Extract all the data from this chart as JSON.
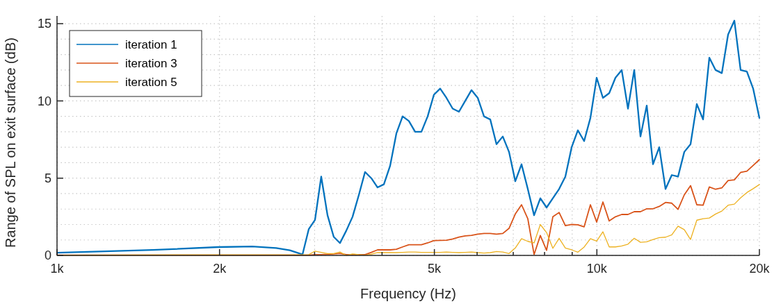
{
  "chart_data": {
    "type": "line",
    "xlabel": "Frequency (Hz)",
    "ylabel": "Range of SPL on exit surface (dB)",
    "log": "x",
    "xlim": [
      1000,
      20000
    ],
    "ylim": [
      0,
      15.5
    ],
    "xticks": [
      {
        "value": 1000,
        "label": "1k"
      },
      {
        "value": 2000,
        "label": "2k"
      },
      {
        "value": 3000,
        "label": null
      },
      {
        "value": 4000,
        "label": null
      },
      {
        "value": 5000,
        "label": "5k"
      },
      {
        "value": 6000,
        "label": null
      },
      {
        "value": 7000,
        "label": null
      },
      {
        "value": 8000,
        "label": null
      },
      {
        "value": 9000,
        "label": null
      },
      {
        "value": 10000,
        "label": "10k"
      },
      {
        "value": 20000,
        "label": "20k"
      }
    ],
    "yticks": [
      0,
      {
        "value": 1,
        "label": null
      },
      {
        "value": 2,
        "label": null
      },
      {
        "value": 3,
        "label": null
      },
      {
        "value": 4,
        "label": null
      },
      5,
      {
        "value": 6,
        "label": null
      },
      {
        "value": 7,
        "label": null
      },
      {
        "value": 8,
        "label": null
      },
      {
        "value": 9,
        "label": null
      },
      10,
      {
        "value": 11,
        "label": null
      },
      {
        "value": 12,
        "label": null
      },
      {
        "value": 13,
        "label": null
      },
      {
        "value": 14,
        "label": null
      },
      15
    ],
    "grid": true,
    "legend": "top left",
    "marker": "none",
    "line_style": "solid",
    "series": [
      {
        "name": "iteration 1",
        "color": "#0072bd",
        "x": [
          1000,
          1500,
          1985,
          2300,
          2547,
          2700,
          2849,
          2926,
          3005,
          3086,
          3170,
          3255,
          3343,
          3434,
          3527,
          3622,
          3720,
          3821,
          3924,
          4031,
          4140,
          4252,
          4367,
          4485,
          4606,
          4731,
          4859,
          4990,
          5125,
          5264,
          5406,
          5553,
          5703,
          5857,
          6016,
          6179,
          6346,
          6517,
          6694,
          6875,
          7061,
          7252,
          7448,
          7650,
          7857,
          8069,
          8288,
          8512,
          8742,
          8979,
          9222,
          9471,
          9728,
          9991,
          10261,
          10539,
          10824,
          11117,
          11418,
          11727,
          12044,
          12370,
          12704,
          13048,
          13401,
          13764,
          14136,
          14518,
          14911,
          15314,
          15729,
          16154,
          16591,
          17040,
          17501,
          17974,
          18460,
          18960,
          19473,
          20000
        ],
        "values": [
          0.17,
          0.35,
          0.54,
          0.58,
          0.48,
          0.33,
          0.06,
          1.7,
          2.3,
          5.1,
          2.6,
          1.2,
          0.8,
          1.6,
          2.5,
          3.9,
          5.4,
          5.0,
          4.4,
          4.6,
          5.8,
          7.9,
          9.0,
          8.7,
          8.0,
          8.0,
          9.0,
          10.4,
          10.8,
          10.2,
          9.5,
          9.3,
          10.0,
          10.7,
          10.2,
          9.0,
          8.8,
          7.2,
          7.7,
          6.7,
          4.8,
          5.9,
          4.3,
          2.6,
          3.7,
          3.1,
          3.7,
          4.3,
          5.1,
          7.0,
          8.1,
          7.4,
          8.9,
          11.5,
          10.2,
          10.5,
          11.5,
          12.0,
          9.5,
          12.0,
          7.7,
          9.7,
          5.9,
          7.0,
          4.3,
          5.2,
          5.1,
          6.7,
          7.2,
          9.8,
          8.8,
          12.8,
          12.0,
          11.8,
          14.3,
          15.2,
          12.0,
          11.9,
          10.8,
          8.9
        ]
      },
      {
        "name": "iteration 3",
        "color": "#d95319",
        "x": [
          1000,
          2926,
          3005,
          3086,
          3170,
          3255,
          3343,
          3434,
          3527,
          3622,
          3720,
          3821,
          3924,
          4031,
          4140,
          4252,
          4367,
          4485,
          4606,
          4731,
          4859,
          4990,
          5125,
          5264,
          5406,
          5553,
          5703,
          5857,
          6016,
          6179,
          6346,
          6517,
          6694,
          6875,
          7061,
          7252,
          7448,
          7650,
          7857,
          8069,
          8288,
          8512,
          8742,
          8979,
          9222,
          9471,
          9728,
          9991,
          10261,
          10539,
          10824,
          11117,
          11418,
          11727,
          12044,
          12370,
          12704,
          13048,
          13401,
          13764,
          14136,
          14518,
          14911,
          15314,
          15729,
          16154,
          16591,
          17040,
          17501,
          17974,
          18460,
          18960,
          19473,
          20000
        ],
        "values": [
          0.02,
          0.02,
          0.05,
          0.05,
          0.07,
          0.1,
          0.13,
          0.05,
          0.05,
          0.05,
          0.05,
          0.2,
          0.36,
          0.36,
          0.36,
          0.4,
          0.55,
          0.69,
          0.69,
          0.69,
          0.81,
          0.96,
          0.97,
          0.98,
          1.06,
          1.18,
          1.26,
          1.3,
          1.38,
          1.42,
          1.42,
          1.38,
          1.42,
          1.75,
          2.68,
          3.28,
          2.38,
          0.06,
          1.29,
          0.33,
          2.5,
          2.78,
          1.93,
          2.0,
          1.98,
          1.85,
          3.28,
          2.16,
          3.46,
          2.23,
          2.5,
          2.65,
          2.65,
          2.83,
          2.83,
          3.02,
          3.02,
          3.17,
          3.43,
          3.38,
          2.98,
          3.92,
          4.52,
          3.28,
          3.25,
          4.43,
          4.28,
          4.37,
          4.85,
          4.89,
          5.37,
          5.45,
          5.82,
          6.2
        ]
      },
      {
        "name": "iteration 5",
        "color": "#edb120",
        "x": [
          1000,
          2926,
          3005,
          3086,
          3170,
          3255,
          3343,
          3434,
          3527,
          3622,
          3720,
          3821,
          3924,
          4031,
          4140,
          4252,
          4367,
          4485,
          4606,
          4731,
          4859,
          4990,
          5125,
          5264,
          5406,
          5553,
          5703,
          5857,
          6016,
          6179,
          6346,
          6517,
          6694,
          6875,
          7061,
          7252,
          7448,
          7650,
          7857,
          8069,
          8288,
          8512,
          8742,
          8979,
          9222,
          9471,
          9728,
          9991,
          10261,
          10539,
          10824,
          11117,
          11418,
          11727,
          12044,
          12370,
          12704,
          13048,
          13401,
          13764,
          14136,
          14518,
          14911,
          15314,
          15729,
          16154,
          16591,
          17040,
          17501,
          17974,
          18460,
          18960,
          19473,
          20000
        ],
        "values": [
          0.02,
          0.05,
          0.28,
          0.2,
          0.12,
          0.12,
          0.22,
          0.0,
          0.1,
          0.05,
          0.02,
          0.08,
          0.18,
          0.18,
          0.18,
          0.18,
          0.2,
          0.22,
          0.22,
          0.2,
          0.2,
          0.2,
          0.2,
          0.22,
          0.2,
          0.18,
          0.2,
          0.22,
          0.18,
          0.15,
          0.18,
          0.25,
          0.22,
          0.12,
          0.48,
          1.08,
          0.91,
          0.81,
          2.0,
          1.48,
          0.46,
          1.11,
          0.48,
          0.36,
          0.21,
          0.54,
          1.08,
          0.93,
          1.53,
          0.55,
          0.55,
          0.61,
          0.73,
          1.11,
          0.85,
          0.88,
          1.03,
          1.15,
          1.18,
          1.33,
          1.89,
          1.67,
          1.03,
          2.28,
          2.38,
          2.42,
          2.68,
          2.87,
          3.25,
          3.32,
          3.73,
          4.07,
          4.32,
          4.59
        ]
      }
    ]
  }
}
